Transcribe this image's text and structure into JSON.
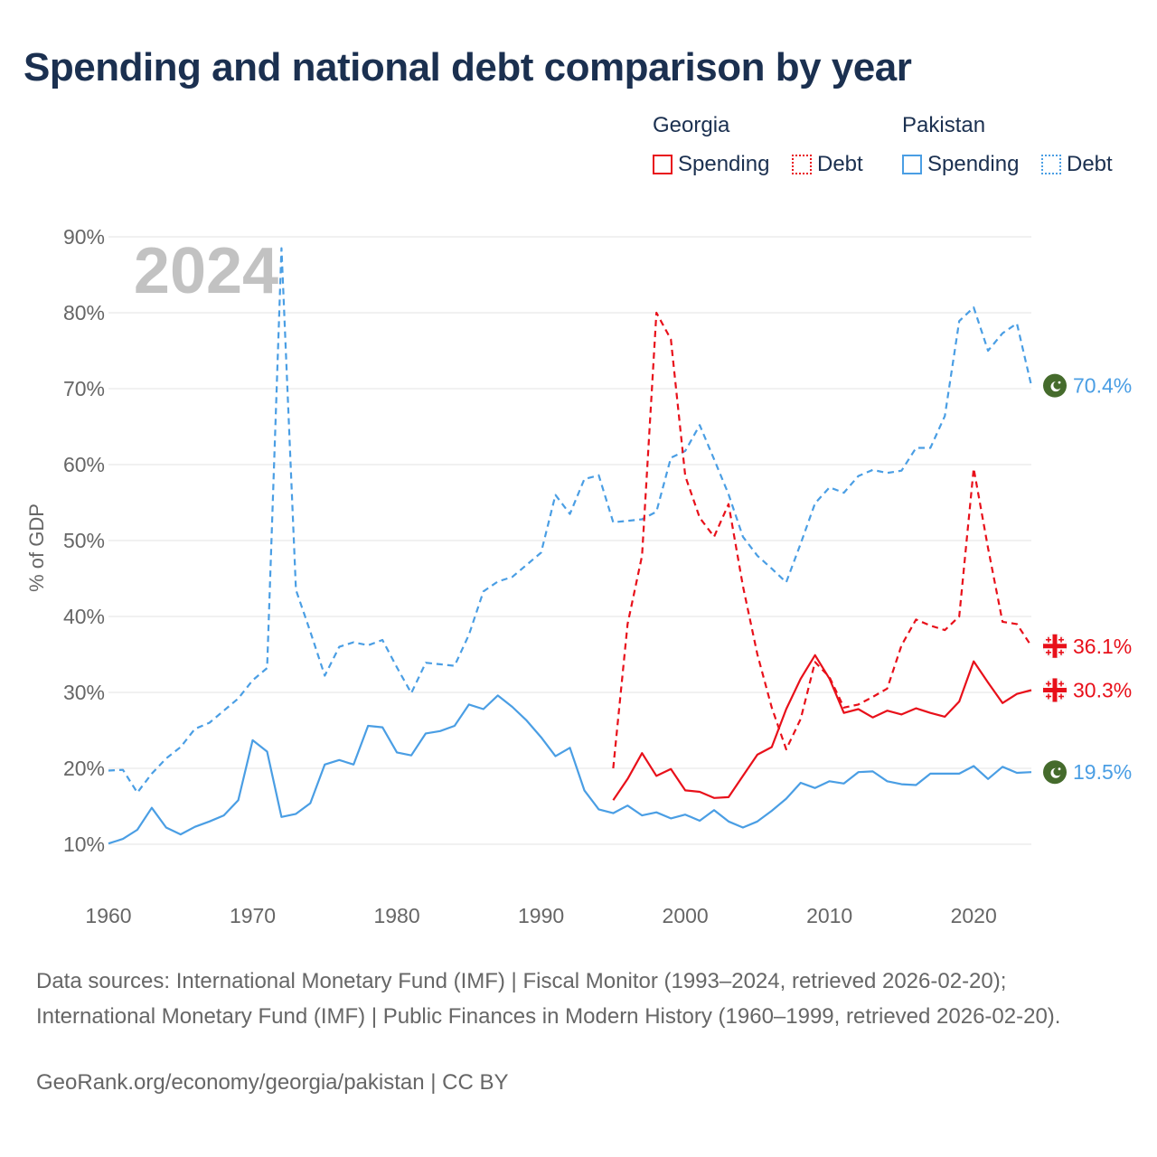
{
  "title": "Spending and national debt comparison by year",
  "legend": {
    "groups": [
      {
        "country": "Georgia",
        "items": [
          {
            "label": "Spending",
            "color": "#e8101a",
            "style": "solid"
          },
          {
            "label": "Debt",
            "color": "#e8101a",
            "style": "dotted"
          }
        ]
      },
      {
        "country": "Pakistan",
        "items": [
          {
            "label": "Spending",
            "color": "#4a9ee4",
            "style": "solid"
          },
          {
            "label": "Debt",
            "color": "#4a9ee4",
            "style": "dotted"
          }
        ]
      }
    ]
  },
  "chart_data": {
    "type": "line",
    "year_label": "2024",
    "ylabel": "% of GDP",
    "xlabel": "",
    "xlim": [
      1960,
      2024
    ],
    "ylim": [
      10,
      90
    ],
    "x_ticks": [
      1960,
      1970,
      1980,
      1990,
      2000,
      2010,
      2020
    ],
    "y_ticks": [
      10,
      20,
      30,
      40,
      50,
      60,
      70,
      80,
      90
    ],
    "y_tick_suffix": "%",
    "series": [
      {
        "name": "Pakistan Debt",
        "country": "Pakistan",
        "metric": "Debt",
        "color": "#4a9ee4",
        "dash": true,
        "end_label": "70.4%",
        "flag": "pakistan-flag",
        "x": [
          1960,
          1961,
          1962,
          1963,
          1964,
          1965,
          1966,
          1967,
          1968,
          1969,
          1970,
          1971,
          1972,
          1973,
          1974,
          1975,
          1976,
          1977,
          1978,
          1979,
          1980,
          1981,
          1982,
          1983,
          1984,
          1985,
          1986,
          1987,
          1988,
          1989,
          1990,
          1991,
          1992,
          1993,
          1994,
          1995,
          1996,
          1997,
          1998,
          1999,
          2000,
          2001,
          2002,
          2003,
          2004,
          2005,
          2006,
          2007,
          2008,
          2009,
          2010,
          2011,
          2012,
          2013,
          2014,
          2015,
          2016,
          2017,
          2018,
          2019,
          2020,
          2021,
          2022,
          2023,
          2024
        ],
        "values": [
          19.7,
          19.8,
          16.8,
          19.3,
          21.3,
          22.8,
          25.2,
          26.0,
          27.6,
          29.2,
          31.6,
          33.2,
          88.5,
          43.5,
          38.0,
          32.2,
          36.0,
          36.6,
          36.2,
          36.9,
          33.3,
          29.9,
          33.9,
          33.7,
          33.5,
          37.6,
          43.3,
          44.6,
          45.2,
          46.8,
          48.4,
          56.0,
          53.5,
          58.1,
          58.6,
          52.4,
          52.6,
          52.8,
          53.8,
          60.9,
          61.8,
          65.2,
          60.7,
          56.1,
          50.5,
          48.0,
          46.3,
          44.5,
          49.6,
          54.9,
          57.0,
          56.3,
          58.5,
          59.3,
          58.9,
          59.2,
          62.2,
          62.2,
          66.4,
          78.9,
          80.7,
          75.0,
          77.3,
          78.6,
          70.4
        ]
      },
      {
        "name": "Pakistan Spending",
        "country": "Pakistan",
        "metric": "Spending",
        "color": "#4a9ee4",
        "dash": false,
        "end_label": "19.5%",
        "flag": "pakistan-flag",
        "x": [
          1960,
          1961,
          1962,
          1963,
          1964,
          1965,
          1966,
          1967,
          1968,
          1969,
          1970,
          1971,
          1972,
          1973,
          1974,
          1975,
          1976,
          1977,
          1978,
          1979,
          1980,
          1981,
          1982,
          1983,
          1984,
          1985,
          1986,
          1987,
          1988,
          1989,
          1990,
          1991,
          1992,
          1993,
          1994,
          1995,
          1996,
          1997,
          1998,
          1999,
          2000,
          2001,
          2002,
          2003,
          2004,
          2005,
          2006,
          2007,
          2008,
          2009,
          2010,
          2011,
          2012,
          2013,
          2014,
          2015,
          2016,
          2017,
          2018,
          2019,
          2020,
          2021,
          2022,
          2023,
          2024
        ],
        "values": [
          10.1,
          10.7,
          11.9,
          14.8,
          12.2,
          11.3,
          12.3,
          13.0,
          13.8,
          15.8,
          23.7,
          22.2,
          13.6,
          14.0,
          15.4,
          20.5,
          21.1,
          20.5,
          25.6,
          25.4,
          22.1,
          21.7,
          24.6,
          24.9,
          25.6,
          28.4,
          27.8,
          29.6,
          28.1,
          26.3,
          24.1,
          21.6,
          22.7,
          17.1,
          14.6,
          14.1,
          15.1,
          13.8,
          14.2,
          13.4,
          13.9,
          13.1,
          14.5,
          13.0,
          12.2,
          13.0,
          14.4,
          16.0,
          18.1,
          17.4,
          18.3,
          18.0,
          19.5,
          19.6,
          18.3,
          17.9,
          17.8,
          19.3,
          19.3,
          19.3,
          20.3,
          18.6,
          20.2,
          19.4,
          19.5
        ]
      },
      {
        "name": "Georgia Debt",
        "country": "Georgia",
        "metric": "Debt",
        "color": "#e8101a",
        "dash": true,
        "end_label": "36.1%",
        "flag": "georgia-flag",
        "x": [
          1995,
          1996,
          1997,
          1998,
          1999,
          2000,
          2001,
          2002,
          2003,
          2004,
          2005,
          2006,
          2007,
          2008,
          2009,
          2010,
          2011,
          2012,
          2013,
          2014,
          2015,
          2016,
          2017,
          2018,
          2019,
          2020,
          2021,
          2022,
          2023,
          2024
        ],
        "values": [
          20.0,
          39.0,
          48.0,
          80.0,
          76.5,
          58.5,
          53.0,
          50.5,
          54.8,
          44.0,
          35.0,
          28.0,
          22.5,
          26.5,
          34.0,
          32.0,
          28.0,
          28.4,
          29.4,
          30.5,
          36.2,
          39.6,
          38.8,
          38.2,
          40.0,
          59.5,
          49.0,
          39.3,
          39.0,
          36.1
        ]
      },
      {
        "name": "Georgia Spending",
        "country": "Georgia",
        "metric": "Spending",
        "color": "#e8101a",
        "dash": false,
        "end_label": "30.3%",
        "flag": "georgia-flag",
        "x": [
          1995,
          1996,
          1997,
          1998,
          1999,
          2000,
          2001,
          2002,
          2003,
          2004,
          2005,
          2006,
          2007,
          2008,
          2009,
          2010,
          2011,
          2012,
          2013,
          2014,
          2015,
          2016,
          2017,
          2018,
          2019,
          2020,
          2021,
          2022,
          2023,
          2024
        ],
        "values": [
          15.8,
          18.6,
          22.0,
          19.0,
          19.9,
          17.1,
          16.9,
          16.1,
          16.2,
          19.0,
          21.8,
          22.8,
          27.8,
          31.8,
          34.9,
          31.8,
          27.3,
          27.8,
          26.7,
          27.6,
          27.1,
          27.9,
          27.3,
          26.8,
          28.8,
          34.1,
          31.3,
          28.6,
          29.8,
          30.3
        ]
      }
    ]
  },
  "sources": "Data sources: International Monetary Fund (IMF) | Fiscal Monitor (1993–2024, retrieved 2026-02-20); International Monetary Fund (IMF) | Public Finances in Modern History (1960–1999, retrieved 2026-02-20).",
  "credit": "GeoRank.org/economy/georgia/pakistan | CC BY"
}
